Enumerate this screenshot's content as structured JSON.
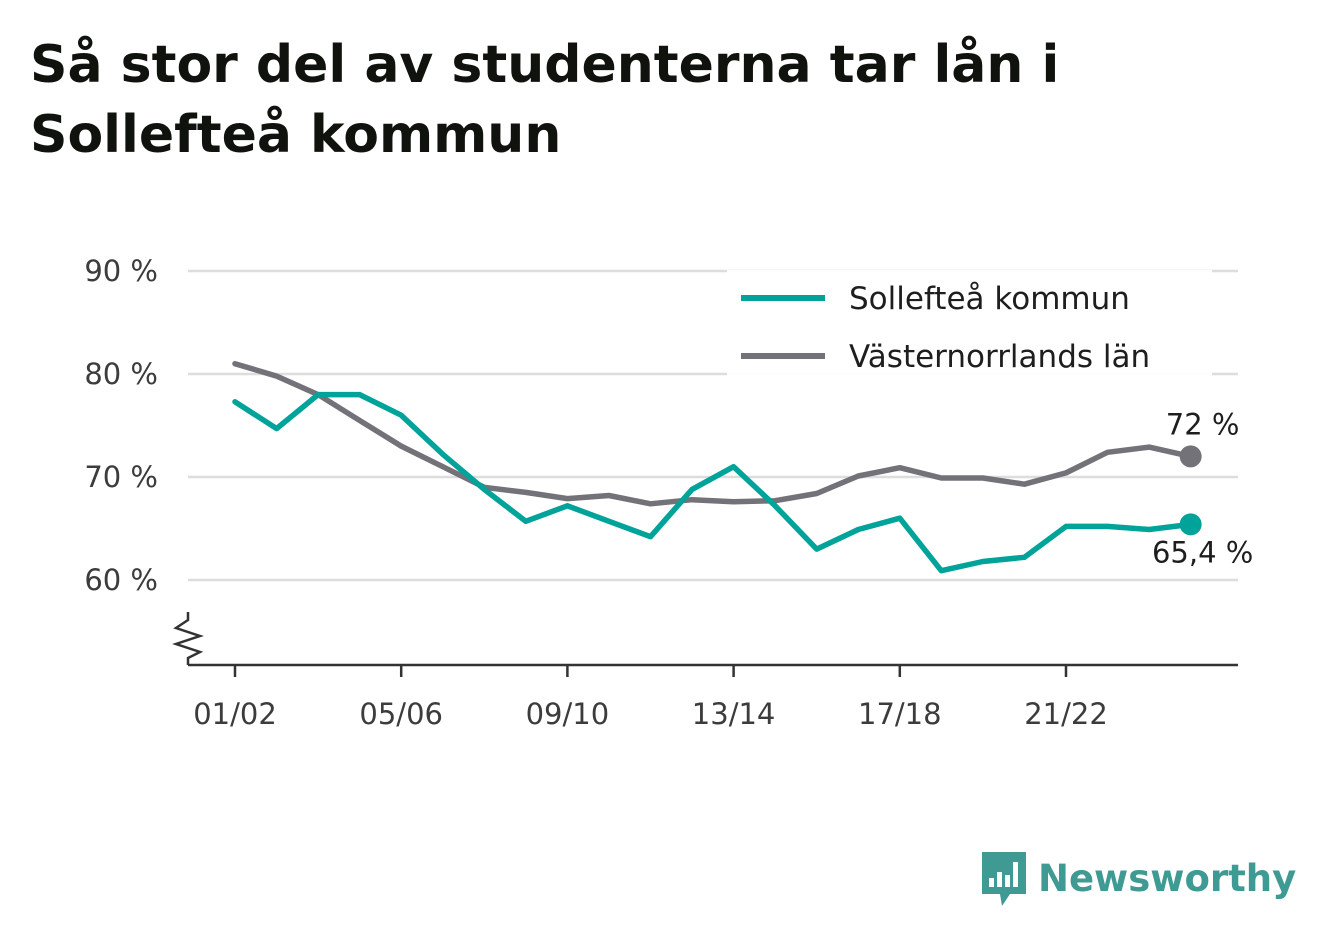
{
  "title": "Så stor del av studenterna tar lån i Sollefteå kommun",
  "brand": {
    "name": "Newsworthy",
    "color": "#3f9a94",
    "icon": "bar-chart-speech-bubble-icon"
  },
  "chart_data": {
    "type": "line",
    "x": [
      "01/02",
      "02/03",
      "03/04",
      "04/05",
      "05/06",
      "06/07",
      "07/08",
      "08/09",
      "09/10",
      "10/11",
      "11/12",
      "12/13",
      "13/14",
      "14/15",
      "15/16",
      "16/17",
      "17/18",
      "18/19",
      "19/20",
      "20/21",
      "21/22",
      "22/23",
      "23/24",
      "24/25"
    ],
    "x_ticks": [
      "01/02",
      "05/06",
      "09/10",
      "13/14",
      "17/18",
      "21/22"
    ],
    "y_ticks": [
      60,
      70,
      80,
      90
    ],
    "y_tick_labels": [
      "60 %",
      "70 %",
      "80 %",
      "90 %"
    ],
    "ylim": [
      52,
      90
    ],
    "y_axis_break": true,
    "grid": true,
    "legend_position": "top-right",
    "series": [
      {
        "name": "Sollefteå kommun",
        "color": "#00a39a",
        "values": [
          77.3,
          74.7,
          78.0,
          78.0,
          76.0,
          72.2,
          68.8,
          65.7,
          67.2,
          65.7,
          64.2,
          68.8,
          71.0,
          67.2,
          63.0,
          64.9,
          66.0,
          60.9,
          61.8,
          62.2,
          65.2,
          65.2,
          64.9,
          65.4
        ],
        "end_label": "65,4 %"
      },
      {
        "name": "Västernorrlands län",
        "color": "#737278",
        "values": [
          81.0,
          79.8,
          78.0,
          75.5,
          73.0,
          71.0,
          69.0,
          68.5,
          67.9,
          68.2,
          67.4,
          67.8,
          67.6,
          67.7,
          68.4,
          70.1,
          70.9,
          69.9,
          69.9,
          69.3,
          70.4,
          72.4,
          72.9,
          72.0
        ],
        "end_label": "72 %"
      }
    ]
  }
}
